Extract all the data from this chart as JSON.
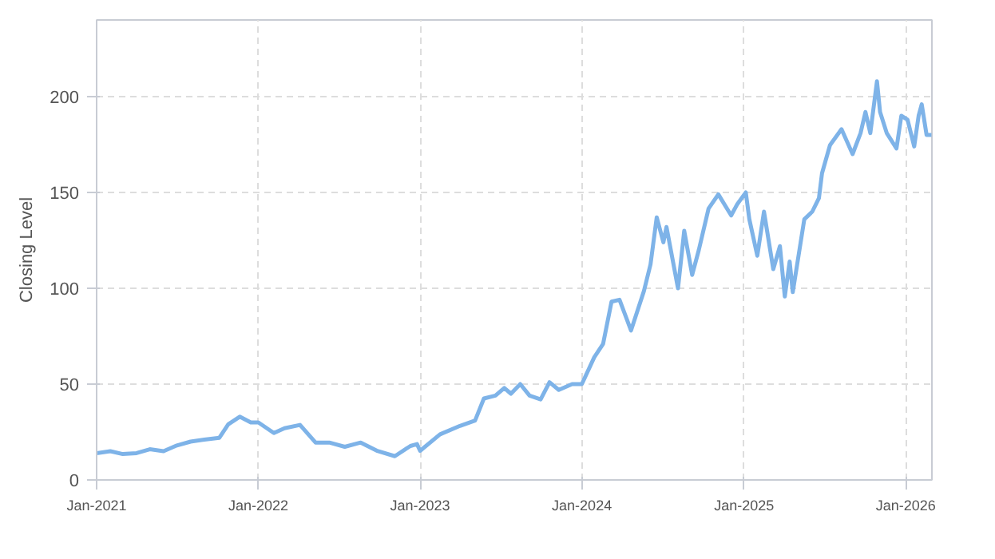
{
  "chart_data": {
    "type": "line",
    "ylabel": "Closing Level",
    "x": [
      "2021-01-01",
      "2021-02-01",
      "2021-03-01",
      "2021-04-01",
      "2021-05-01",
      "2021-06-01",
      "2021-07-01",
      "2021-08-01",
      "2021-09-01",
      "2021-10-05",
      "2021-10-25",
      "2021-11-20",
      "2021-12-15",
      "2022-01-01",
      "2022-02-05",
      "2022-03-01",
      "2022-04-05",
      "2022-05-10",
      "2022-06-10",
      "2022-07-15",
      "2022-08-20",
      "2022-09-25",
      "2022-11-05",
      "2022-12-10",
      "2022-12-25",
      "2023-01-01",
      "2023-02-15",
      "2023-04-01",
      "2023-05-05",
      "2023-05-25",
      "2023-06-20",
      "2023-07-10",
      "2023-07-25",
      "2023-08-15",
      "2023-09-05",
      "2023-09-30",
      "2023-10-20",
      "2023-11-10",
      "2023-12-10",
      "2024-01-01",
      "2024-01-29",
      "2024-02-18",
      "2024-03-08",
      "2024-03-26",
      "2024-04-21",
      "2024-05-20",
      "2024-06-04",
      "2024-06-18",
      "2024-07-03",
      "2024-07-10",
      "2024-08-05",
      "2024-08-19",
      "2024-09-06",
      "2024-09-21",
      "2024-10-13",
      "2024-11-04",
      "2024-12-03",
      "2024-12-17",
      "2025-01-05",
      "2025-01-13",
      "2025-01-31",
      "2025-02-15",
      "2025-03-08",
      "2025-03-23",
      "2025-04-03",
      "2025-04-14",
      "2025-04-21",
      "2025-05-17",
      "2025-06-04",
      "2025-06-19",
      "2025-06-26",
      "2025-07-14",
      "2025-08-09",
      "2025-09-03",
      "2025-09-21",
      "2025-10-02",
      "2025-10-13",
      "2025-10-28",
      "2025-11-04",
      "2025-11-19",
      "2025-12-11",
      "2025-12-22",
      "2026-01-05",
      "2026-01-20",
      "2026-01-30",
      "2026-02-06",
      "2026-02-17",
      "2026-02-28"
    ],
    "series": [
      {
        "color": "#7eb3e8",
        "values": [
          14,
          15,
          13.5,
          14,
          16,
          15,
          18,
          20,
          21,
          22,
          29,
          33,
          30,
          30,
          24.5,
          27,
          28.7,
          19.5,
          19.5,
          17.3,
          19.5,
          15.3,
          12.4,
          17.7,
          18.7,
          15.2,
          23.8,
          28.2,
          31,
          42.5,
          44,
          48,
          45,
          50,
          44,
          42,
          51,
          47,
          50,
          50,
          64,
          71,
          93,
          94,
          78,
          98.5,
          112.5,
          137,
          124,
          132,
          100,
          130,
          107,
          120,
          141.6,
          149,
          138,
          144,
          150,
          136,
          117,
          140,
          110,
          122,
          95.7,
          114,
          98,
          136,
          140,
          147,
          160,
          174.7,
          183,
          170,
          181,
          192,
          181,
          208,
          192,
          181,
          173,
          190,
          188,
          174,
          190,
          196,
          180,
          180
        ]
      }
    ],
    "xlim": [
      "2021-01-01",
      "2026-03-01"
    ],
    "ylim": [
      0,
      240
    ],
    "xticks": [
      {
        "value": "2021-01-01",
        "label": "Jan-2021"
      },
      {
        "value": "2022-01-01",
        "label": "Jan-2022"
      },
      {
        "value": "2023-01-01",
        "label": "Jan-2023"
      },
      {
        "value": "2024-01-01",
        "label": "Jan-2024"
      },
      {
        "value": "2025-01-01",
        "label": "Jan-2025"
      },
      {
        "value": "2026-01-01",
        "label": "Jan-2026"
      }
    ],
    "yticks": [
      0,
      50,
      100,
      150,
      200
    ],
    "grid": true,
    "line_style": "solid"
  }
}
